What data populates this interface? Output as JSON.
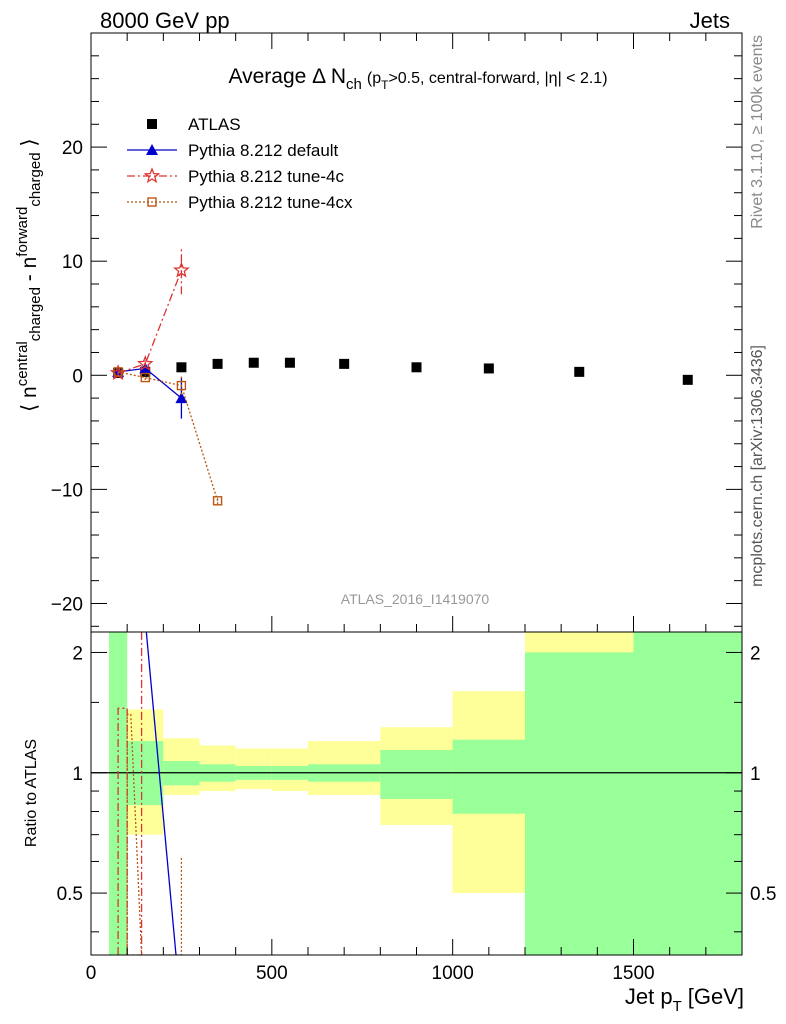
{
  "header": {
    "left": "8000 GeV pp",
    "right": "Jets"
  },
  "side": {
    "rivet": "Rivet 3.1.10, ≥ 100k events",
    "mcplots": "mcplots.cern.ch [arXiv:1306.3436]"
  },
  "analysis_id": "ATLAS_2016_I1419070",
  "chart_data": [
    {
      "type": "scatter",
      "panel": "main",
      "title": "Average Δ N",
      "title_sub": "ch",
      "title_cut": "(p",
      "title_cut_sub": "T",
      "title_cut_rest": ">0.5, central-forward, |η| < 2.1)",
      "ylabel": "⟨ n",
      "ylabel_parts": [
        "⟨ n",
        "central",
        "charged",
        " - n",
        "forward",
        "charged",
        " ⟩"
      ],
      "xlabel": "Jet p",
      "xlabel_sub": "T",
      "xlabel_unit": "[GeV]",
      "xlim": [
        0,
        1800
      ],
      "ylim": [
        -22.5,
        30
      ],
      "yticks": [
        -20,
        -10,
        0,
        10,
        20
      ],
      "ytick_labels": [
        "−20",
        "−10",
        "0",
        "10",
        "20"
      ],
      "legend": [
        {
          "name": "ATLAS",
          "color": "#000000",
          "marker": "square"
        },
        {
          "name": "Pythia 8.212 default",
          "color": "#0000cc",
          "marker": "triangle"
        },
        {
          "name": "Pythia 8.212 tune-4c",
          "color": "#dd3333",
          "marker": "star"
        },
        {
          "name": "Pythia 8.212 tune-4cx",
          "color": "#bb5511",
          "marker": "open-square"
        }
      ],
      "series": [
        {
          "name": "ATLAS",
          "x": [
            75,
            150,
            250,
            350,
            450,
            550,
            700,
            900,
            1100,
            1350,
            1650
          ],
          "y": [
            0.2,
            0.3,
            0.7,
            1.0,
            1.1,
            1.1,
            1.0,
            0.7,
            0.6,
            0.3,
            -0.4
          ]
        },
        {
          "name": "Pythia 8.212 default",
          "x": [
            75,
            150,
            250
          ],
          "y": [
            0.3,
            0.6,
            -2.0
          ],
          "yerr": [
            0.3,
            0.3,
            1.8
          ]
        },
        {
          "name": "Pythia 8.212 tune-4c",
          "x": [
            75,
            150,
            250
          ],
          "y": [
            0.2,
            1.0,
            9.2
          ],
          "yerr": [
            0.3,
            0.3,
            2.1
          ]
        },
        {
          "name": "Pythia 8.212 tune-4cx",
          "x": [
            75,
            150,
            250,
            350
          ],
          "y": [
            0.3,
            -0.2,
            -0.9,
            -11.0
          ],
          "yerr": [
            0.2,
            0.2,
            0.8,
            0.3
          ]
        }
      ]
    },
    {
      "type": "line",
      "panel": "ratio",
      "ylabel": "Ratio to ATLAS",
      "xlabel": "Jet p",
      "xlabel_sub": "T",
      "xlabel_unit": "[GeV]",
      "xlim": [
        0,
        1800
      ],
      "ylim": [
        0.35,
        2.25
      ],
      "yticks": [
        0.5,
        1,
        2
      ],
      "ytick_labels": [
        "0.5",
        "1",
        "2"
      ],
      "xticks": [
        0,
        500,
        1000,
        1500
      ],
      "xtick_labels": [
        "0",
        "500",
        "1000",
        "1500"
      ],
      "bands": [
        {
          "x0": 50,
          "x1": 100,
          "stat_lo": 0.35,
          "stat_hi": 2.25,
          "tot_lo": 0.35,
          "tot_hi": 2.25
        },
        {
          "x0": 100,
          "x1": 200,
          "stat_lo": 0.83,
          "stat_hi": 1.2,
          "tot_lo": 0.7,
          "tot_hi": 1.44
        },
        {
          "x0": 200,
          "x1": 300,
          "stat_lo": 0.93,
          "stat_hi": 1.07,
          "tot_lo": 0.88,
          "tot_hi": 1.22
        },
        {
          "x0": 300,
          "x1": 400,
          "stat_lo": 0.95,
          "stat_hi": 1.05,
          "tot_lo": 0.9,
          "tot_hi": 1.17
        },
        {
          "x0": 400,
          "x1": 500,
          "stat_lo": 0.96,
          "stat_hi": 1.04,
          "tot_lo": 0.91,
          "tot_hi": 1.15
        },
        {
          "x0": 500,
          "x1": 600,
          "stat_lo": 0.96,
          "stat_hi": 1.04,
          "tot_lo": 0.9,
          "tot_hi": 1.15
        },
        {
          "x0": 600,
          "x1": 800,
          "stat_lo": 0.95,
          "stat_hi": 1.05,
          "tot_lo": 0.88,
          "tot_hi": 1.2
        },
        {
          "x0": 800,
          "x1": 1000,
          "stat_lo": 0.86,
          "stat_hi": 1.14,
          "tot_lo": 0.74,
          "tot_hi": 1.3
        },
        {
          "x0": 1000,
          "x1": 1200,
          "stat_lo": 0.79,
          "stat_hi": 1.21,
          "tot_lo": 0.5,
          "tot_hi": 1.6
        },
        {
          "x0": 1200,
          "x1": 1500,
          "stat_lo": 0.35,
          "stat_hi": 2.0,
          "tot_lo": 0.35,
          "tot_hi": 2.25
        },
        {
          "x0": 1500,
          "x1": 1800,
          "stat_lo": 0.35,
          "stat_hi": 2.25,
          "tot_lo": 0.35,
          "tot_hi": 2.25
        }
      ],
      "series": [
        {
          "name": "Pythia 8.212 default",
          "x": [
            150,
            235
          ],
          "y": [
            2.4,
            0.35
          ]
        },
        {
          "name": "Pythia 8.212 tune-4c",
          "x": [
            75,
            75,
            100,
            100,
            140,
            140
          ],
          "y": [
            0.35,
            1.45,
            1.45,
            0.35,
            0.35,
            2.25
          ]
        },
        {
          "name": "Pythia 8.212 tune-4cx",
          "x": [
            100,
            100,
            110,
            140,
            140,
            250,
            250
          ],
          "y": [
            0.35,
            1.4,
            1.4,
            0.35,
            0.35,
            0.35,
            0.62
          ]
        }
      ]
    }
  ]
}
